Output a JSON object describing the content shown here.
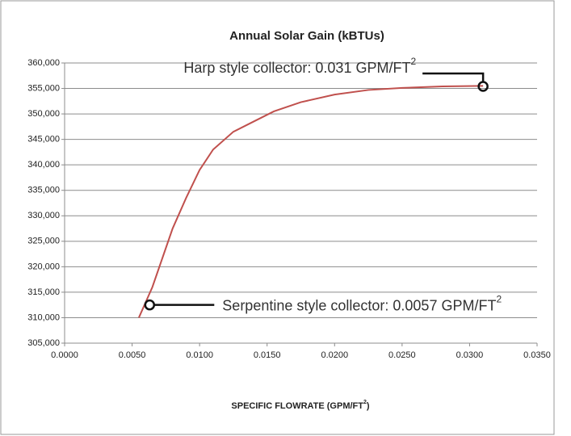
{
  "chart_data": {
    "type": "line",
    "title": "Annual Solar Gain (kBTUs)",
    "x_label_parts": [
      "SPECIFIC FLOWRATE (GPM/FT",
      "2",
      ")"
    ],
    "series": [
      {
        "name": "Annual Solar Gain",
        "color": "#c0504d",
        "x": [
          0.0055,
          0.0065,
          0.008,
          0.009,
          0.01,
          0.011,
          0.0125,
          0.014,
          0.0155,
          0.0175,
          0.02,
          0.0225,
          0.025,
          0.028,
          0.031
        ],
        "values": [
          310000,
          316000,
          327500,
          333500,
          339000,
          343000,
          346500,
          348500,
          350500,
          352300,
          353800,
          354700,
          355100,
          355400,
          355500
        ]
      }
    ],
    "xlim": [
      0,
      0.035
    ],
    "xticks": [
      {
        "value": 0,
        "label": "0.0000"
      },
      {
        "value": 0.005,
        "label": "0.0050"
      },
      {
        "value": 0.01,
        "label": "0.0100"
      },
      {
        "value": 0.015,
        "label": "0.0150"
      },
      {
        "value": 0.02,
        "label": "0.0200"
      },
      {
        "value": 0.025,
        "label": "0.0250"
      },
      {
        "value": 0.03,
        "label": "0.0300"
      },
      {
        "value": 0.035,
        "label": "0.0350"
      }
    ],
    "ylim": [
      305000,
      360000
    ],
    "yticks": [
      {
        "value": 305000,
        "label": "305,000"
      },
      {
        "value": 310000,
        "label": "310,000"
      },
      {
        "value": 315000,
        "label": "315,000"
      },
      {
        "value": 320000,
        "label": "320,000"
      },
      {
        "value": 325000,
        "label": "325,000"
      },
      {
        "value": 330000,
        "label": "330,000"
      },
      {
        "value": 335000,
        "label": "335,000"
      },
      {
        "value": 340000,
        "label": "340,000"
      },
      {
        "value": 345000,
        "label": "345,000"
      },
      {
        "value": 350000,
        "label": "350,000"
      },
      {
        "value": 355000,
        "label": "355,000"
      },
      {
        "value": 360000,
        "label": "360,000"
      }
    ],
    "grid": true,
    "annotations": [
      {
        "text": "Harp style collector: 0.031 GPM/FT",
        "sup": "2",
        "x": 0.031,
        "y": 355400
      },
      {
        "text": "Serpentine style collector: 0.0057 GPM/FT",
        "sup": "2",
        "x": 0.0063,
        "y": 312500
      }
    ]
  }
}
